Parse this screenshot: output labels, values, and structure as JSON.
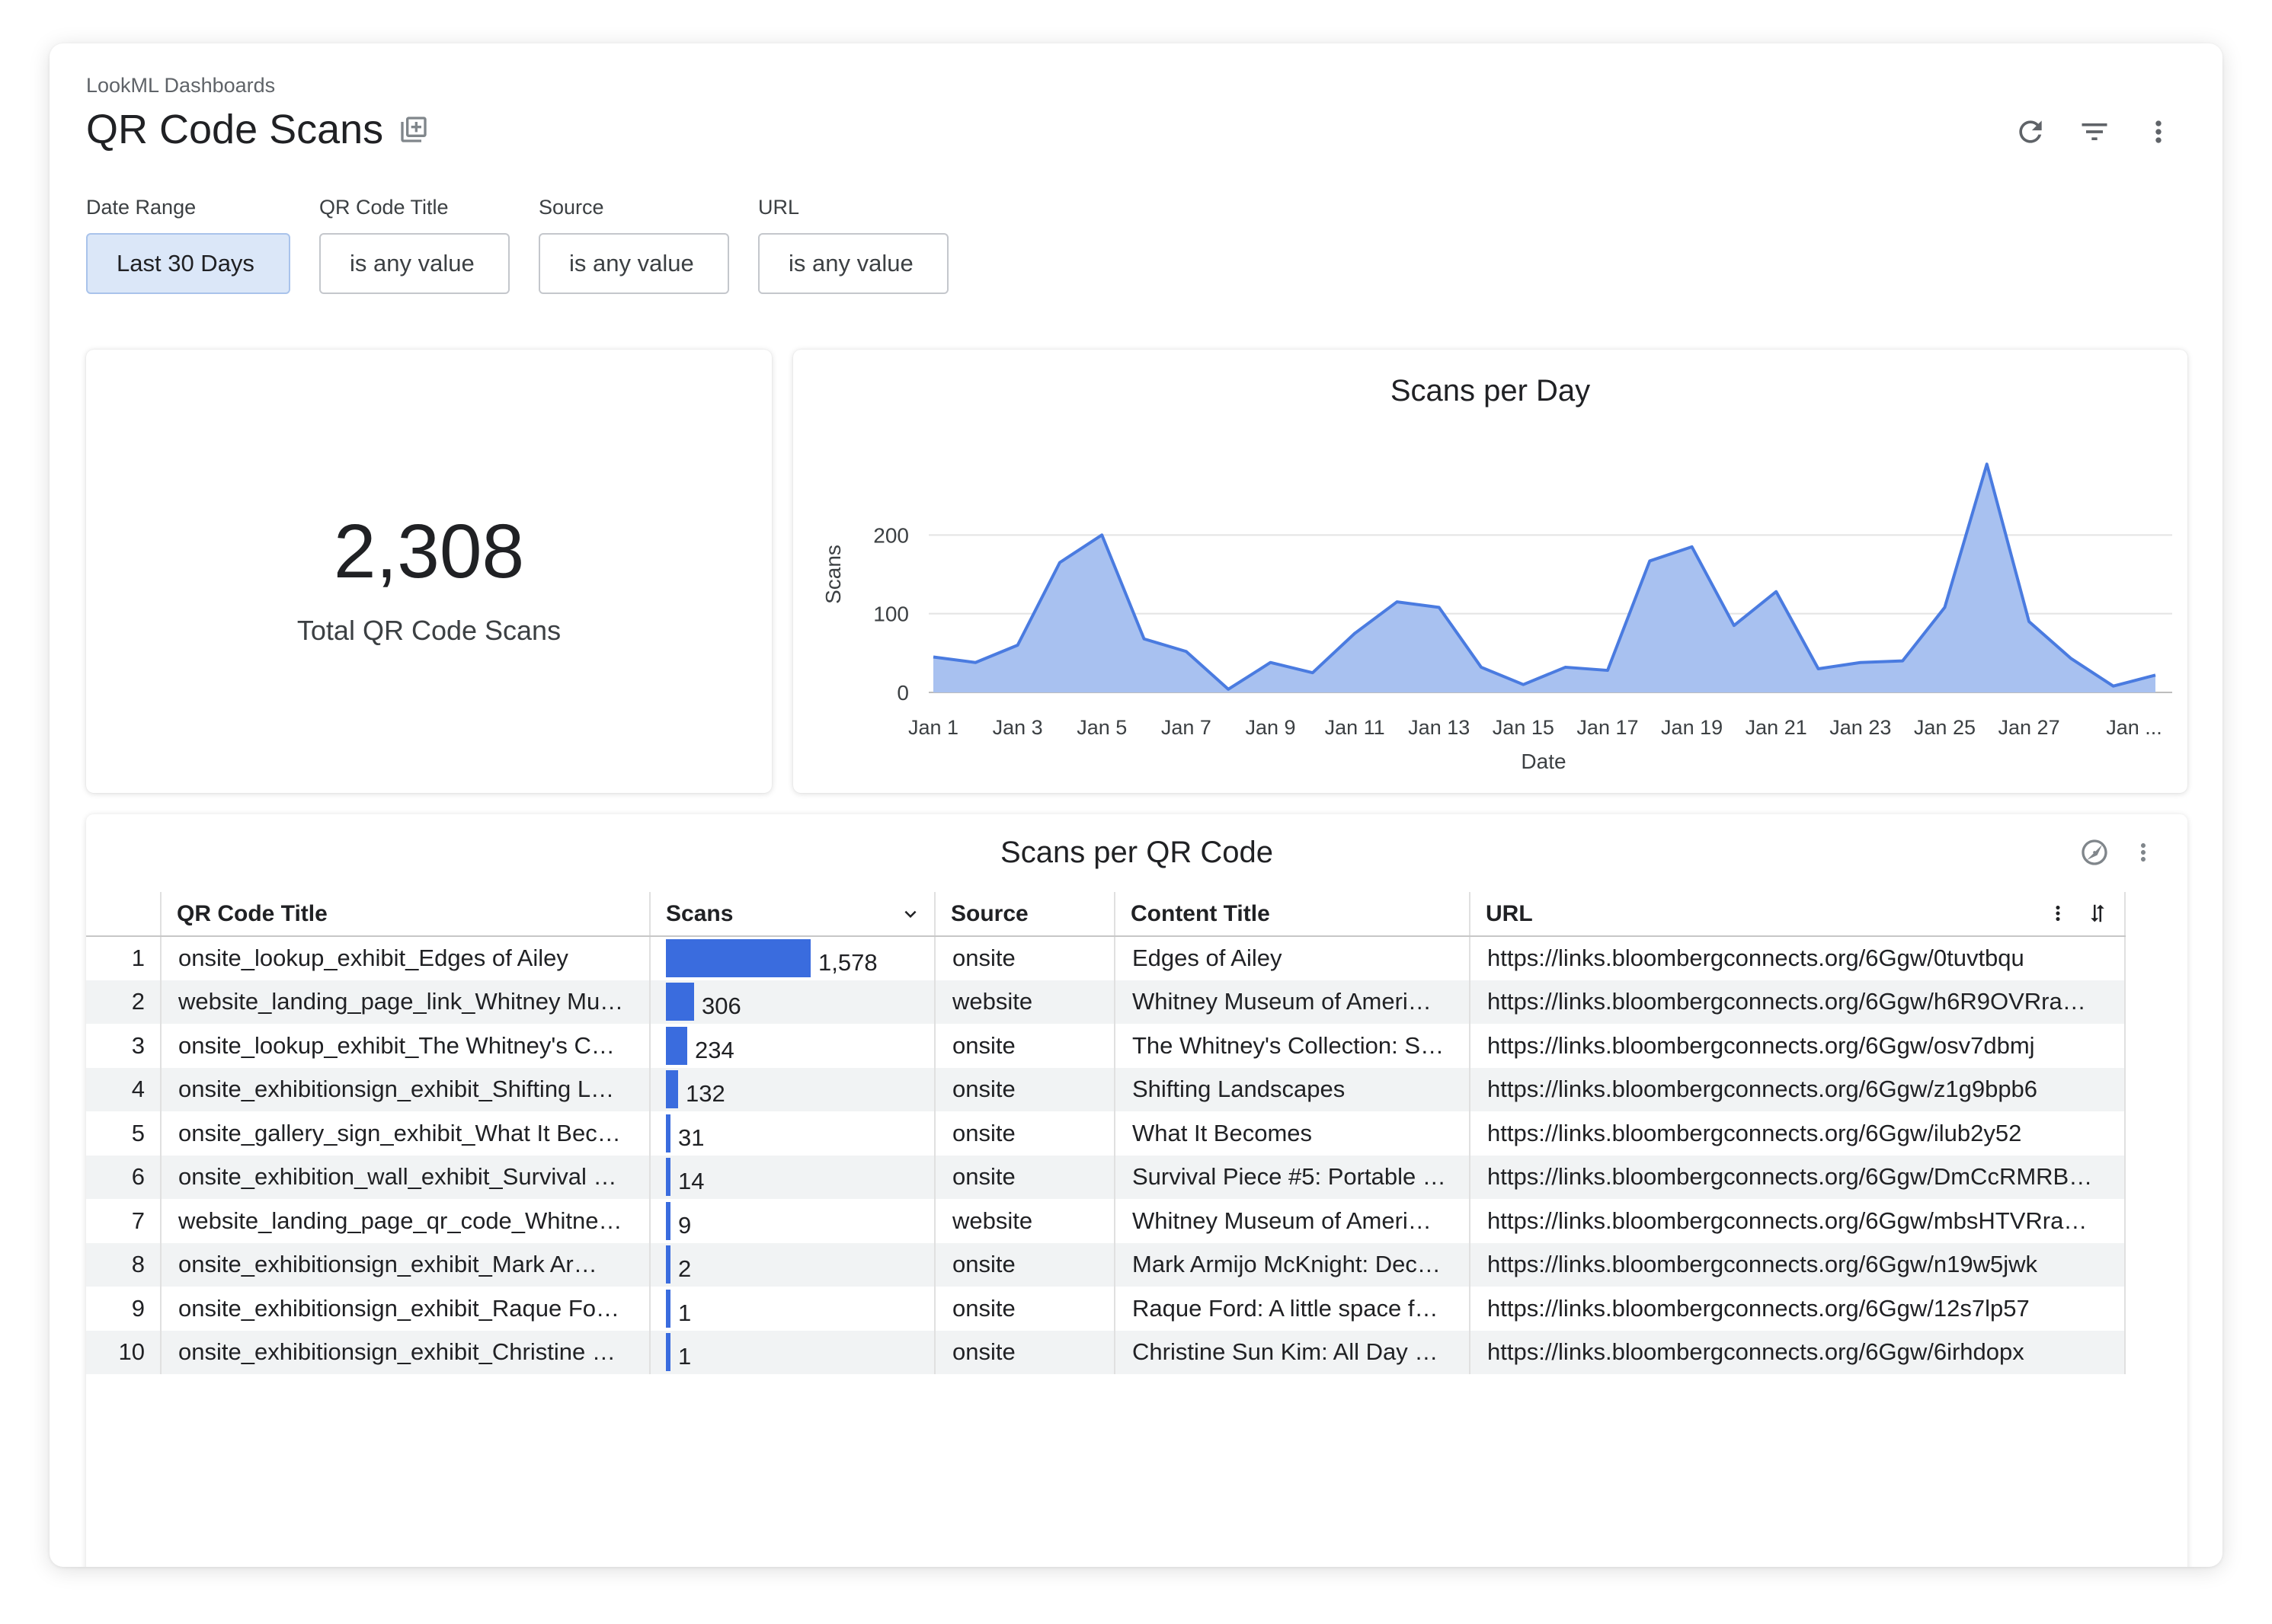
{
  "header": {
    "breadcrumb": "LookML Dashboards",
    "title": "QR Code Scans"
  },
  "filters": [
    {
      "label": "Date Range",
      "value": "Last 30 Days",
      "active": true
    },
    {
      "label": "QR Code Title",
      "value": "is any value",
      "active": false
    },
    {
      "label": "Source",
      "value": "is any value",
      "active": false
    },
    {
      "label": "URL",
      "value": "is any value",
      "active": false
    }
  ],
  "kpi": {
    "value": "2,308",
    "label": "Total QR Code Scans"
  },
  "chart_data": {
    "type": "area",
    "title": "Scans per Day",
    "xlabel": "Date",
    "ylabel": "Scans",
    "ylim": [
      0,
      300
    ],
    "yticks": [
      0,
      100,
      200
    ],
    "grid": true,
    "color": "#4a7be0",
    "fill": "#a8c1f0",
    "x": [
      "Jan 1",
      "Jan 2",
      "Jan 3",
      "Jan 4",
      "Jan 5",
      "Jan 6",
      "Jan 7",
      "Jan 8",
      "Jan 9",
      "Jan 10",
      "Jan 11",
      "Jan 12",
      "Jan 13",
      "Jan 14",
      "Jan 15",
      "Jan 16",
      "Jan 17",
      "Jan 18",
      "Jan 19",
      "Jan 20",
      "Jan 21",
      "Jan 22",
      "Jan 23",
      "Jan 24",
      "Jan 25",
      "Jan 26",
      "Jan 27",
      "Jan 28",
      "Jan 29",
      "Jan 30"
    ],
    "values": [
      45,
      38,
      60,
      165,
      200,
      68,
      52,
      4,
      38,
      25,
      75,
      115,
      108,
      32,
      10,
      32,
      28,
      167,
      185,
      85,
      128,
      30,
      38,
      40,
      108,
      290,
      90,
      43,
      8,
      22
    ],
    "xtick_labels": [
      "Jan 1",
      "Jan 3",
      "Jan 5",
      "Jan 7",
      "Jan 9",
      "Jan 11",
      "Jan 13",
      "Jan 15",
      "Jan 17",
      "Jan 19",
      "Jan 21",
      "Jan 23",
      "Jan 25",
      "Jan 27",
      "Jan ..."
    ]
  },
  "table": {
    "title": "Scans per QR Code",
    "columns": [
      "QR Code Title",
      "Scans",
      "Source",
      "Content Title",
      "URL"
    ],
    "bar_color": "#3a6cde",
    "max_scans": 1578,
    "rows": [
      {
        "n": "1",
        "title": "onsite_lookup_exhibit_Edges of Ailey",
        "scans": 1578,
        "scans_label": "1,578",
        "source": "onsite",
        "content": "Edges of Ailey",
        "url": "https://links.bloombergconnects.org/6Ggw/0tuvtbqu"
      },
      {
        "n": "2",
        "title": "website_landing_page_link_Whitney Mu…",
        "scans": 306,
        "scans_label": "306",
        "source": "website",
        "content": "Whitney Museum of Ameri…",
        "url": "https://links.bloombergconnects.org/6Ggw/h6R9OVRra…"
      },
      {
        "n": "3",
        "title": "onsite_lookup_exhibit_The Whitney's C…",
        "scans": 234,
        "scans_label": "234",
        "source": "onsite",
        "content": "The Whitney's Collection: S…",
        "url": "https://links.bloombergconnects.org/6Ggw/osv7dbmj"
      },
      {
        "n": "4",
        "title": "onsite_exhibitionsign_exhibit_Shifting L…",
        "scans": 132,
        "scans_label": "132",
        "source": "onsite",
        "content": "Shifting Landscapes",
        "url": "https://links.bloombergconnects.org/6Ggw/z1g9bpb6"
      },
      {
        "n": "5",
        "title": "onsite_gallery_sign_exhibit_What It Bec…",
        "scans": 31,
        "scans_label": "31",
        "source": "onsite",
        "content": "What It Becomes",
        "url": "https://links.bloombergconnects.org/6Ggw/ilub2y52"
      },
      {
        "n": "6",
        "title": "onsite_exhibition_wall_exhibit_Survival …",
        "scans": 14,
        "scans_label": "14",
        "source": "onsite",
        "content": "Survival Piece #5: Portable …",
        "url": "https://links.bloombergconnects.org/6Ggw/DmCcRMRB…"
      },
      {
        "n": "7",
        "title": "website_landing_page_qr_code_Whitne…",
        "scans": 9,
        "scans_label": "9",
        "source": "website",
        "content": "Whitney Museum of Ameri…",
        "url": "https://links.bloombergconnects.org/6Ggw/mbsHTVRra…"
      },
      {
        "n": "8",
        "title": "onsite_exhibitionsign_exhibit_Mark Ar…",
        "scans": 2,
        "scans_label": "2",
        "source": "onsite",
        "content": "Mark Armijo McKnight: Dec…",
        "url": "https://links.bloombergconnects.org/6Ggw/n19w5jwk"
      },
      {
        "n": "9",
        "title": "onsite_exhibitionsign_exhibit_Raque Fo…",
        "scans": 1,
        "scans_label": "1",
        "source": "onsite",
        "content": "Raque Ford: A little space f…",
        "url": "https://links.bloombergconnects.org/6Ggw/12s7lp57"
      },
      {
        "n": "10",
        "title": "onsite_exhibitionsign_exhibit_Christine …",
        "scans": 1,
        "scans_label": "1",
        "source": "onsite",
        "content": "Christine Sun Kim: All Day …",
        "url": "https://links.bloombergconnects.org/6Ggw/6irhdopx"
      }
    ]
  },
  "icons": {
    "title": "copy-to-folder-icon",
    "header": [
      "refresh-icon",
      "filter-icon",
      "more-vert-icon"
    ],
    "table": [
      "explore-icon",
      "more-vert-icon"
    ]
  }
}
